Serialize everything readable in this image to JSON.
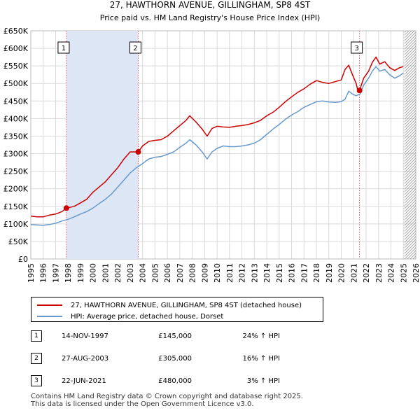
{
  "chart_data": {
    "type": "line",
    "title": "27, HAWTHORN AVENUE, GILLINGHAM, SP8 4ST",
    "subtitle": "Price paid vs. HM Land Registry's House Price Index (HPI)",
    "x_ticks": [
      "1995",
      "1996",
      "1997",
      "1998",
      "1999",
      "2000",
      "2001",
      "2002",
      "2003",
      "2004",
      "2005",
      "2006",
      "2007",
      "2008",
      "2009",
      "2010",
      "2011",
      "2012",
      "2013",
      "2014",
      "2015",
      "2016",
      "2017",
      "2018",
      "2019",
      "2020",
      "2021",
      "2022",
      "2023",
      "2024",
      "2025",
      "2026"
    ],
    "y_ticks": [
      "£0",
      "£50K",
      "£100K",
      "£150K",
      "£200K",
      "£250K",
      "£300K",
      "£350K",
      "£400K",
      "£450K",
      "£500K",
      "£550K",
      "£600K",
      "£650K"
    ],
    "xlim": [
      1995,
      2026
    ],
    "ylim": [
      0,
      650000
    ],
    "series": [
      {
        "name": "27, HAWTHORN AVENUE, GILLINGHAM, SP8 4ST (detached house)",
        "color": "#cc0000",
        "x": [
          1995.0,
          1995.5,
          1996.0,
          1996.5,
          1997.0,
          1997.5,
          1997.87,
          1998.5,
          1999.0,
          1999.5,
          2000.0,
          2000.5,
          2001.0,
          2001.5,
          2002.0,
          2002.5,
          2003.0,
          2003.4,
          2003.65,
          2004.0,
          2004.5,
          2005.0,
          2005.5,
          2006.0,
          2006.5,
          2007.0,
          2007.5,
          2007.8,
          2008.3,
          2008.8,
          2009.2,
          2009.6,
          2010.0,
          2010.5,
          2011.0,
          2011.5,
          2012.0,
          2012.5,
          2013.0,
          2013.5,
          2014.0,
          2014.5,
          2015.0,
          2015.5,
          2016.0,
          2016.5,
          2017.0,
          2017.5,
          2018.0,
          2018.5,
          2019.0,
          2019.5,
          2020.0,
          2020.3,
          2020.6,
          2020.9,
          2021.2,
          2021.3,
          2021.47,
          2021.8,
          2022.2,
          2022.5,
          2022.8,
          2023.1,
          2023.5,
          2023.9,
          2024.3,
          2024.7,
          2025.0
        ],
        "values": [
          122000,
          120000,
          120000,
          125000,
          128000,
          135000,
          145000,
          150000,
          160000,
          170000,
          190000,
          205000,
          220000,
          240000,
          260000,
          285000,
          305000,
          305000,
          305000,
          322000,
          335000,
          338000,
          340000,
          350000,
          365000,
          380000,
          395000,
          408000,
          390000,
          370000,
          350000,
          372000,
          378000,
          376000,
          375000,
          378000,
          380000,
          383000,
          388000,
          395000,
          408000,
          418000,
          432000,
          448000,
          462000,
          475000,
          485000,
          498000,
          508000,
          503000,
          500000,
          505000,
          510000,
          540000,
          552000,
          525000,
          500000,
          485000,
          480000,
          515000,
          535000,
          560000,
          575000,
          555000,
          562000,
          545000,
          537000,
          545000,
          548000
        ]
      },
      {
        "name": "HPI: Average price, detached house, Dorset",
        "color": "#6699cc",
        "x": [
          1995.0,
          1995.5,
          1996.0,
          1996.5,
          1997.0,
          1997.5,
          1998.0,
          1998.5,
          1999.0,
          1999.5,
          2000.0,
          2000.5,
          2001.0,
          2001.5,
          2002.0,
          2002.5,
          2003.0,
          2003.5,
          2004.0,
          2004.5,
          2005.0,
          2005.5,
          2006.0,
          2006.5,
          2007.0,
          2007.5,
          2007.8,
          2008.3,
          2008.8,
          2009.2,
          2009.6,
          2010.0,
          2010.5,
          2011.0,
          2011.5,
          2012.0,
          2012.5,
          2013.0,
          2013.5,
          2014.0,
          2014.5,
          2015.0,
          2015.5,
          2016.0,
          2016.5,
          2017.0,
          2017.5,
          2018.0,
          2018.5,
          2019.0,
          2019.5,
          2020.0,
          2020.3,
          2020.6,
          2020.9,
          2021.2,
          2021.5,
          2021.8,
          2022.2,
          2022.5,
          2022.8,
          2023.1,
          2023.5,
          2023.9,
          2024.3,
          2024.7,
          2025.0
        ],
        "values": [
          98000,
          97000,
          96000,
          98000,
          102000,
          108000,
          113000,
          120000,
          128000,
          135000,
          145000,
          158000,
          170000,
          185000,
          205000,
          225000,
          245000,
          260000,
          272000,
          285000,
          290000,
          292000,
          298000,
          305000,
          318000,
          330000,
          340000,
          325000,
          305000,
          285000,
          305000,
          315000,
          322000,
          320000,
          320000,
          322000,
          325000,
          330000,
          340000,
          355000,
          370000,
          383000,
          398000,
          410000,
          420000,
          432000,
          440000,
          448000,
          450000,
          447000,
          446000,
          448000,
          455000,
          478000,
          470000,
          465000,
          470000,
          495000,
          515000,
          535000,
          548000,
          535000,
          540000,
          525000,
          515000,
          522000,
          530000
        ]
      }
    ],
    "transactions": [
      {
        "marker": "1",
        "date": "14-NOV-1997",
        "price": "£145,000",
        "hpi": "24% ↑ HPI",
        "x": 1997.87,
        "value": 145000
      },
      {
        "marker": "2",
        "date": "27-AUG-2003",
        "price": "£305,000",
        "hpi": "16% ↑ HPI",
        "x": 2003.65,
        "value": 305000
      },
      {
        "marker": "3",
        "date": "22-JUN-2021",
        "price": "£480,000",
        "hpi": "3% ↑ HPI",
        "x": 2021.47,
        "value": 480000
      }
    ],
    "shaded_periods": [
      [
        1997.87,
        2003.65
      ]
    ],
    "forecast_start": 2025.08
  },
  "footer": {
    "line1": "Contains HM Land Registry data © Crown copyright and database right 2025.",
    "line2": "This data is licensed under the Open Government Licence v3.0."
  },
  "colors": {
    "price_line": "#cc0000",
    "hpi_line": "#6699cc",
    "shade": "#dde6f5",
    "grid": "#d9d9d9"
  }
}
